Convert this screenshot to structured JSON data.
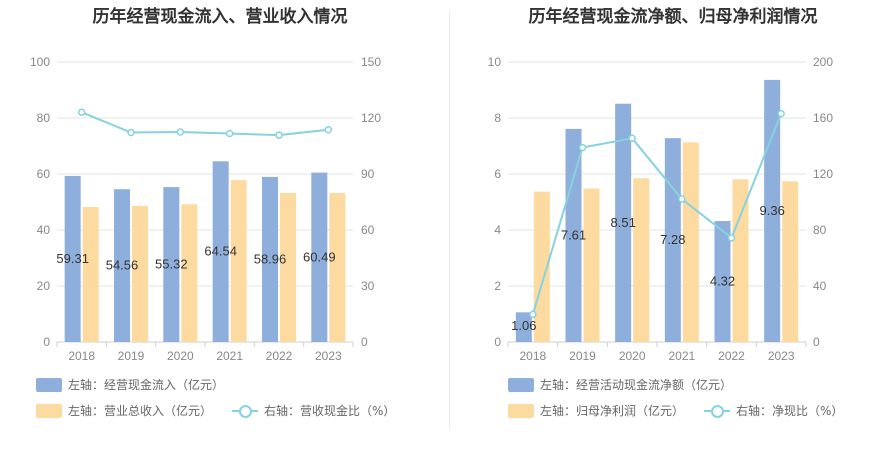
{
  "colors": {
    "blue": "#8eaedb",
    "orange": "#fddba0",
    "line": "#86d3df",
    "grid": "#e3e3e3",
    "axis": "#cfcfcf",
    "text": "#888888"
  },
  "chart_data": [
    {
      "type": "bar",
      "title": "历年经营现金流入、营业收入情况",
      "categories": [
        "2018",
        "2019",
        "2020",
        "2021",
        "2022",
        "2023"
      ],
      "left_axis": {
        "min": 0,
        "max": 100,
        "ticks": [
          "0",
          "20",
          "40",
          "60",
          "80",
          "100"
        ]
      },
      "right_axis": {
        "min": 0,
        "max": 150,
        "ticks": [
          "0",
          "30",
          "60",
          "90",
          "120",
          "150"
        ]
      },
      "series": [
        {
          "name": "左轴：经营现金流入（亿元）",
          "axis": "left",
          "kind": "bar",
          "color": "#8eaedb",
          "values": [
            59.31,
            54.56,
            55.32,
            64.54,
            58.96,
            60.49
          ],
          "labels": [
            "59.31",
            "54.56",
            "55.32",
            "64.54",
            "58.96",
            "60.49"
          ]
        },
        {
          "name": "左轴：营业总收入（亿元）",
          "axis": "left",
          "kind": "bar",
          "color": "#fddba0",
          "values": [
            48.2,
            48.6,
            49.2,
            57.8,
            53.2,
            53.2
          ]
        },
        {
          "name": "右轴：营收现金比（%）",
          "axis": "right",
          "kind": "line",
          "color": "#86d3df",
          "values": [
            123.1,
            112.2,
            112.5,
            111.7,
            110.8,
            113.7
          ]
        }
      ]
    },
    {
      "type": "bar",
      "title": "历年经营现金流净额、归母净利润情况",
      "categories": [
        "2018",
        "2019",
        "2020",
        "2021",
        "2022",
        "2023"
      ],
      "left_axis": {
        "min": 0,
        "max": 10,
        "ticks": [
          "0",
          "2",
          "4",
          "6",
          "8",
          "10"
        ]
      },
      "right_axis": {
        "min": 0,
        "max": 200,
        "ticks": [
          "0",
          "40",
          "80",
          "120",
          "160",
          "200"
        ]
      },
      "series": [
        {
          "name": "左轴：经营活动现金流净额（亿元）",
          "axis": "left",
          "kind": "bar",
          "color": "#8eaedb",
          "values": [
            1.06,
            7.61,
            8.51,
            7.28,
            4.32,
            9.36
          ],
          "labels": [
            "1.06",
            "7.61",
            "8.51",
            "7.28",
            "4.32",
            "9.36"
          ]
        },
        {
          "name": "左轴：归母净利润（亿元）",
          "axis": "left",
          "kind": "bar",
          "color": "#fddba0",
          "values": [
            5.37,
            5.48,
            5.85,
            7.13,
            5.81,
            5.74
          ]
        },
        {
          "name": "右轴：净现比（%）",
          "axis": "right",
          "kind": "line",
          "color": "#86d3df",
          "values": [
            19.7,
            138.9,
            145.5,
            102.1,
            74.4,
            163.1
          ]
        }
      ]
    }
  ]
}
